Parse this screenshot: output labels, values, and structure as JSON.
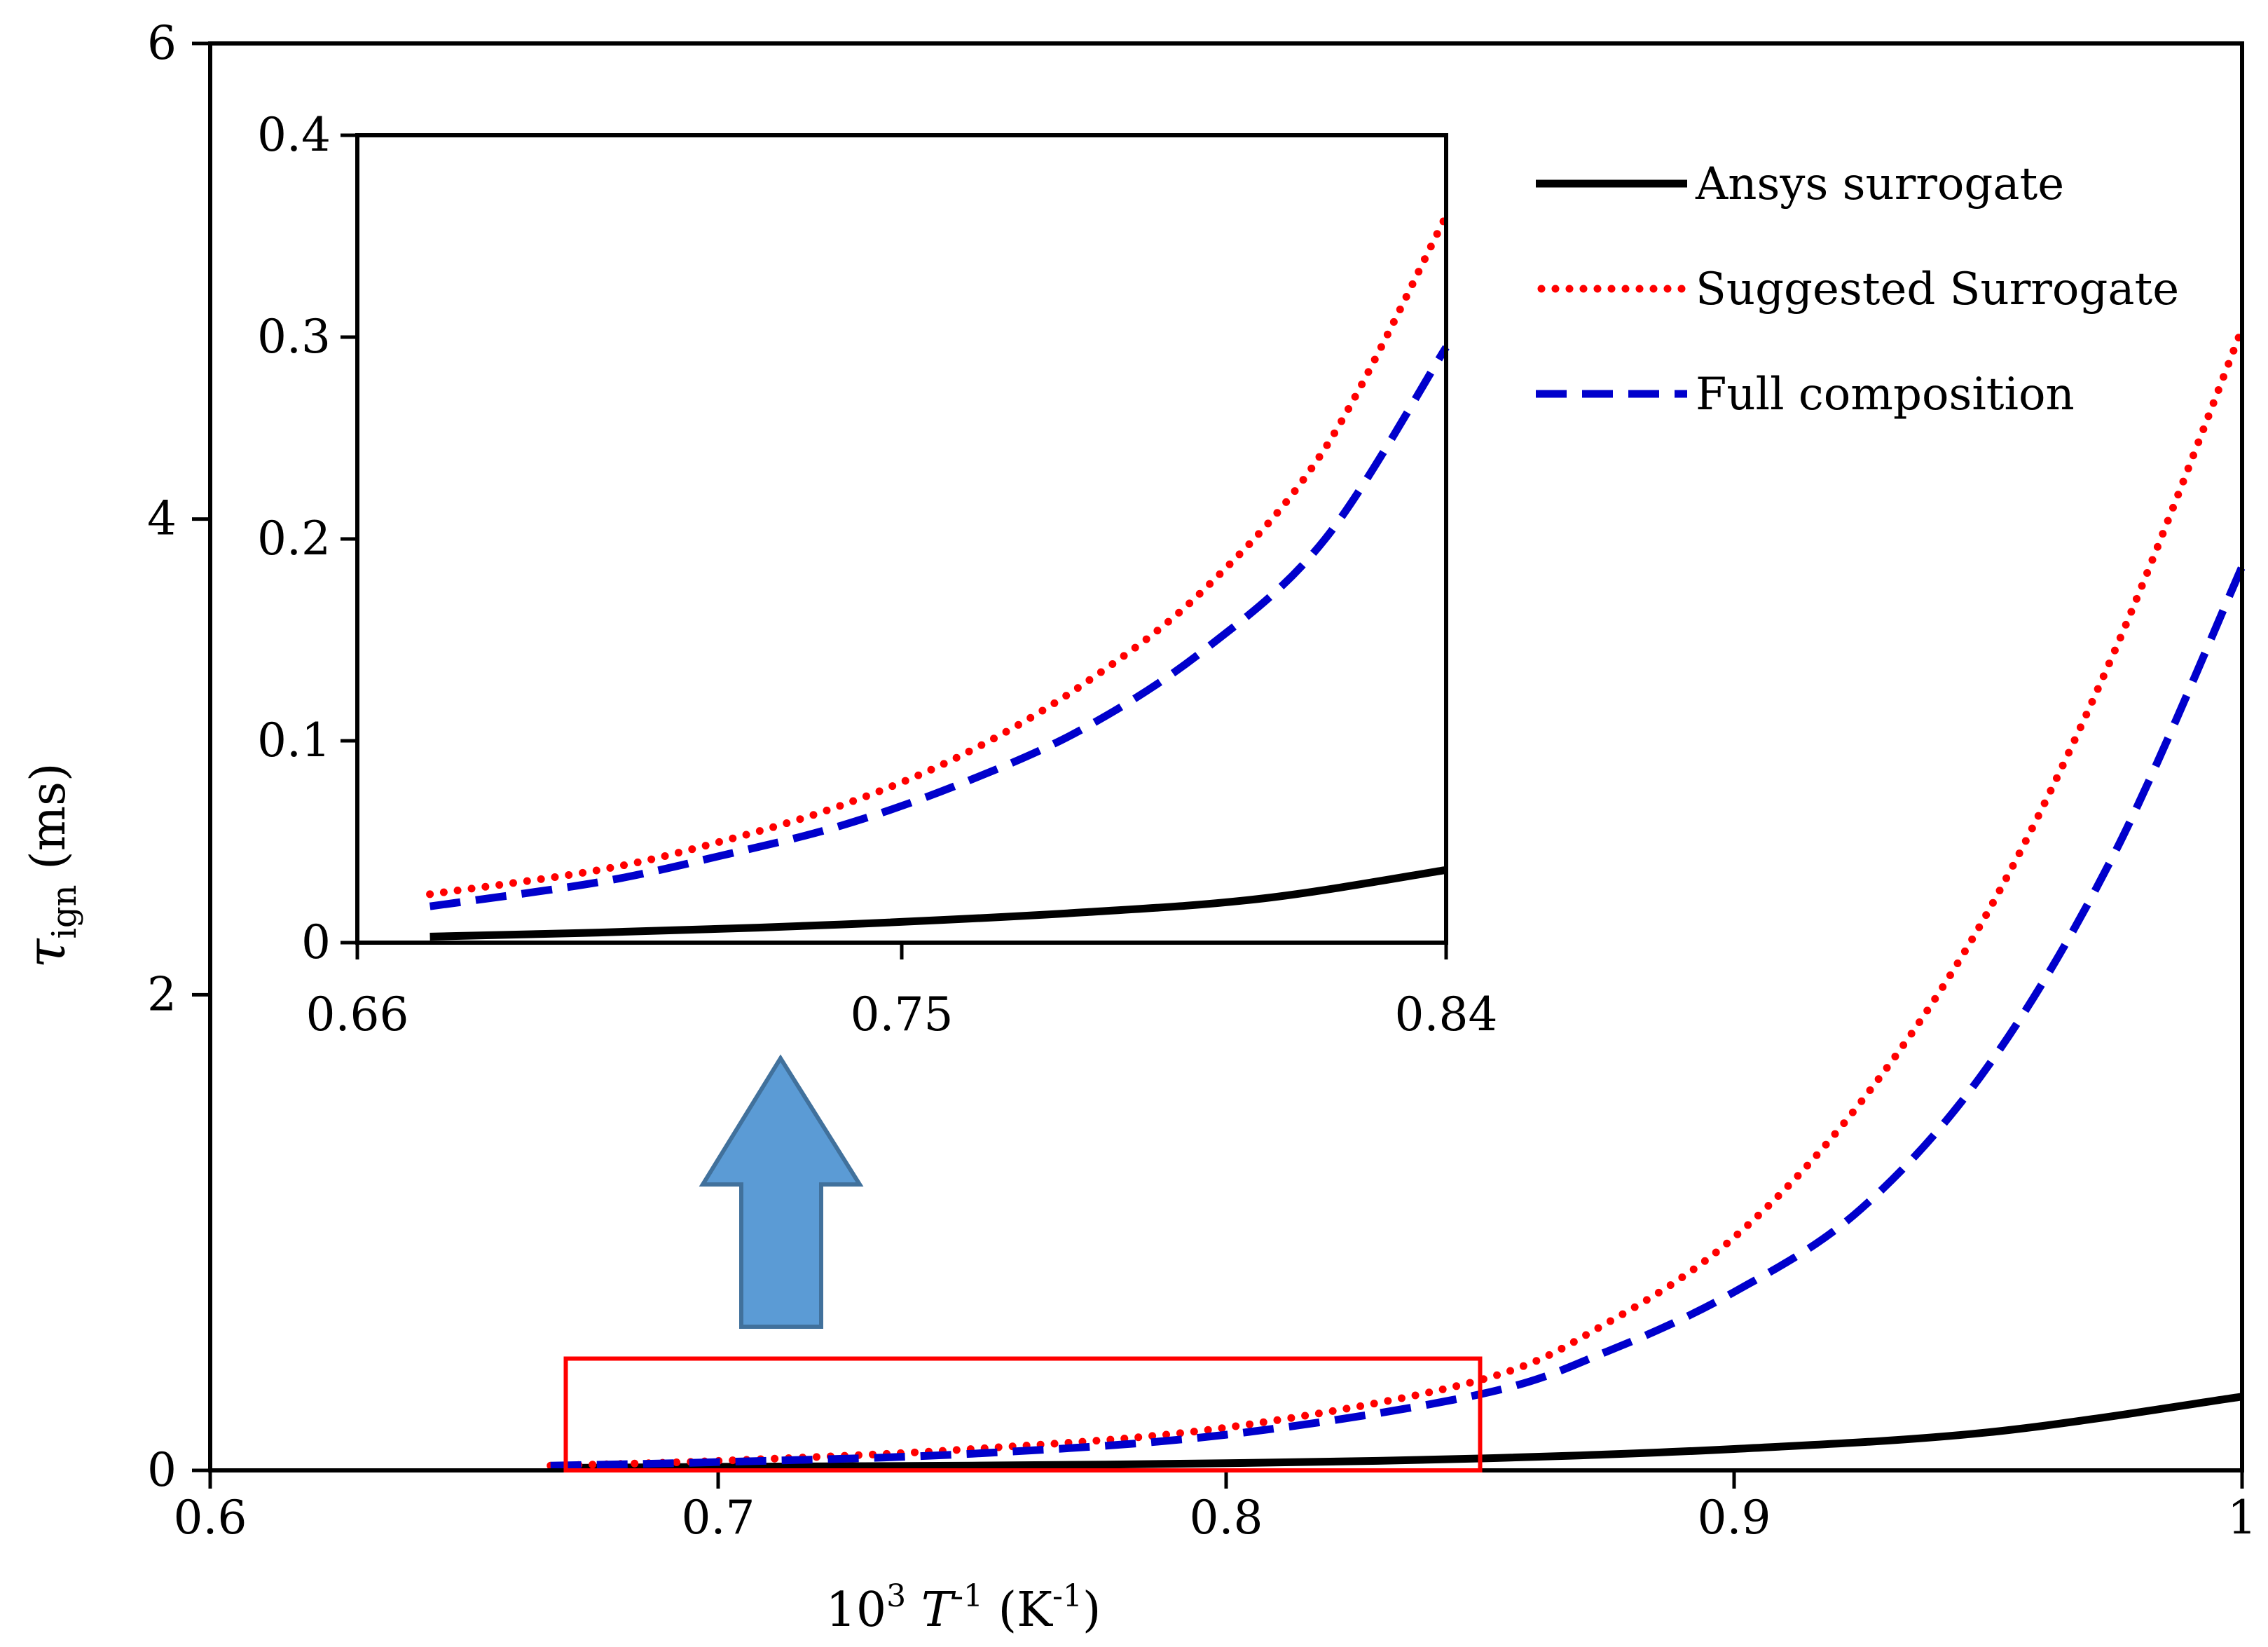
{
  "chart_data": [
    {
      "id": "main",
      "type": "line",
      "xlabel_parts": [
        "10",
        "3",
        " T",
        "-1",
        " (K",
        "-1",
        ")"
      ],
      "ylabel_parts": [
        "τ",
        "ign",
        " (ms)"
      ],
      "xlim": [
        0.6,
        1.0
      ],
      "ylim": [
        0,
        6
      ],
      "xticks": [
        "0.6",
        "0.7",
        "0.8",
        "0.9",
        "1"
      ],
      "yticks": [
        "0",
        "2",
        "4",
        "6"
      ],
      "grid": false,
      "series": [
        {
          "name": "Ansys surrogate",
          "color": "#000000",
          "style": "solid",
          "x": [
            0.667,
            0.7,
            0.75,
            0.8,
            0.85,
            0.9,
            0.95,
            1.0
          ],
          "y": [
            0.01,
            0.015,
            0.02,
            0.03,
            0.05,
            0.09,
            0.16,
            0.31
          ]
        },
        {
          "name": "Suggested Surrogate",
          "color": "#ff0000",
          "style": "dotted",
          "x": [
            0.667,
            0.7,
            0.75,
            0.8,
            0.85,
            0.875,
            0.9,
            0.925,
            0.95,
            0.975,
            1.0
          ],
          "y": [
            0.02,
            0.04,
            0.09,
            0.18,
            0.38,
            0.62,
            0.98,
            1.55,
            2.35,
            3.45,
            4.8
          ]
        },
        {
          "name": "Full composition",
          "color": "#0000cc",
          "style": "dashed",
          "x": [
            0.667,
            0.7,
            0.75,
            0.8,
            0.85,
            0.875,
            0.9,
            0.925,
            0.95,
            0.975,
            1.0
          ],
          "y": [
            0.02,
            0.035,
            0.07,
            0.15,
            0.32,
            0.5,
            0.75,
            1.1,
            1.7,
            2.6,
            3.8
          ]
        }
      ],
      "highlight_box": {
        "x": [
          0.67,
          0.85
        ],
        "y": [
          0,
          0.47
        ],
        "color": "#ff0000"
      }
    },
    {
      "id": "inset",
      "type": "line",
      "xlim": [
        0.66,
        0.84
      ],
      "ylim": [
        0,
        0.4
      ],
      "xticks": [
        "0.66",
        "0.75",
        "0.84"
      ],
      "yticks": [
        "0",
        "0.1",
        "0.2",
        "0.3",
        "0.4"
      ],
      "grid": false,
      "series": [
        {
          "name": "Ansys surrogate",
          "color": "#000000",
          "style": "solid",
          "x": [
            0.672,
            0.7,
            0.74,
            0.78,
            0.81,
            0.84
          ],
          "y": [
            0.003,
            0.005,
            0.009,
            0.015,
            0.022,
            0.036
          ]
        },
        {
          "name": "Suggested Surrogate",
          "color": "#ff0000",
          "style": "dotted",
          "x": [
            0.672,
            0.7,
            0.72,
            0.74,
            0.76,
            0.78,
            0.8,
            0.82,
            0.84
          ],
          "y": [
            0.024,
            0.036,
            0.05,
            0.068,
            0.093,
            0.128,
            0.175,
            0.245,
            0.36
          ]
        },
        {
          "name": "Full composition",
          "color": "#0000cc",
          "style": "dashed",
          "x": [
            0.672,
            0.7,
            0.72,
            0.74,
            0.76,
            0.78,
            0.8,
            0.82,
            0.84
          ],
          "y": [
            0.018,
            0.03,
            0.043,
            0.058,
            0.079,
            0.106,
            0.145,
            0.2,
            0.295
          ]
        }
      ]
    }
  ],
  "legend": {
    "placement": "top-right",
    "items": [
      {
        "label": "Ansys surrogate",
        "color": "#000000",
        "style": "solid"
      },
      {
        "label": "Suggested Surrogate",
        "color": "#ff0000",
        "style": "dotted"
      },
      {
        "label": "Full composition",
        "color": "#0000cc",
        "style": "dashed"
      }
    ]
  },
  "zoom_arrow": {
    "color": "#5b9bd5",
    "border": "#41719c",
    "direction": "up"
  }
}
